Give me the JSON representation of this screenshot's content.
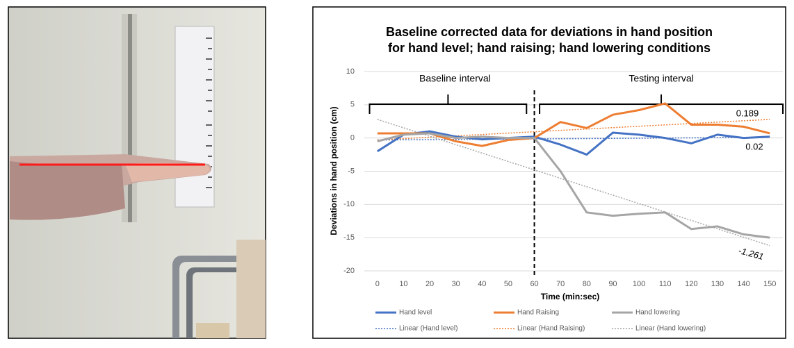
{
  "chart_data": {
    "type": "line",
    "title": "Baseline corrected data for deviations in hand position",
    "subtitle": "for hand level; hand raising; hand lowering conditions",
    "x_label": "Time (min:sec)",
    "y_label": "Deviations in hand position (cm)",
    "x": [
      0,
      10,
      20,
      30,
      40,
      50,
      60,
      70,
      80,
      90,
      100,
      110,
      120,
      130,
      140,
      150
    ],
    "xlim": [
      -5,
      155
    ],
    "xticks": [
      0,
      10,
      20,
      30,
      40,
      50,
      60,
      70,
      80,
      90,
      100,
      110,
      120,
      130,
      140,
      150
    ],
    "ylim": [
      -20,
      10
    ],
    "yticks": [
      -20,
      -15,
      -10,
      -5,
      0,
      5,
      10
    ],
    "grid": true,
    "series": [
      {
        "name": "Hand level",
        "color": "#4472c4",
        "values": [
          -2,
          0.5,
          1.0,
          0.2,
          -0.2,
          0,
          0.2,
          -1,
          -2.5,
          0.8,
          0.5,
          0,
          -0.8,
          0.5,
          0,
          0.2
        ]
      },
      {
        "name": "Hand Raising",
        "color": "#ed7d31",
        "values": [
          0.7,
          0.7,
          0.7,
          -0.5,
          -1.2,
          -0.3,
          0,
          2.4,
          1.5,
          3.5,
          4.2,
          5.2,
          2,
          2,
          1.7,
          0.7
        ]
      },
      {
        "name": "Hand lowering",
        "color": "#a5a5a5",
        "values": [
          -0.5,
          0.5,
          0.7,
          0,
          0.2,
          0,
          0,
          -5,
          -11.2,
          -11.7,
          -11.4,
          -11.2,
          -13.7,
          -13.3,
          -14.5,
          -15
        ]
      }
    ],
    "trendlines": [
      {
        "name": "Linear (Hand level)",
        "color": "#4472c4",
        "x": [
          0,
          150
        ],
        "values": [
          -0.3,
          0.1
        ],
        "label": "0.02"
      },
      {
        "name": "Linear (Hand Raising)",
        "color": "#ed7d31",
        "x": [
          0,
          150
        ],
        "values": [
          -0.3,
          2.8
        ],
        "label": "0.189"
      },
      {
        "name": "Linear (Hand lowering)",
        "color": "#a5a5a5",
        "x": [
          0,
          150
        ],
        "values": [
          2.8,
          -16.2
        ],
        "label": "-1.261"
      }
    ],
    "divider_x": 60,
    "intervals": [
      {
        "label": "Baseline interval",
        "x": [
          -3,
          57
        ]
      },
      {
        "label": "Testing interval",
        "x": [
          62,
          155
        ]
      }
    ]
  }
}
